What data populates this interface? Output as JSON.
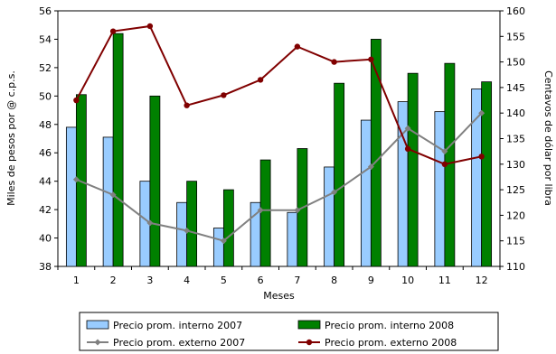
{
  "chart_data": {
    "type": "bar",
    "title": "",
    "xlabel": "Meses",
    "ylabel": "Miles de pesos por @ c.p.s.",
    "y2label": "Centavos de dólar por libra",
    "categories": [
      "1",
      "2",
      "3",
      "4",
      "5",
      "6",
      "7",
      "8",
      "9",
      "10",
      "11",
      "12"
    ],
    "ylim": [
      38,
      56
    ],
    "yticks": [
      38,
      40,
      42,
      44,
      46,
      48,
      50,
      52,
      54,
      56
    ],
    "y2lim": [
      110,
      160
    ],
    "y2ticks": [
      110,
      115,
      120,
      125,
      130,
      135,
      140,
      145,
      150,
      155,
      160
    ],
    "grid": false,
    "legend_position": "bottom",
    "series": [
      {
        "name": "Precio prom. interno 2007",
        "kind": "bar",
        "axis": "left",
        "color": "#99ccff",
        "values": [
          47.8,
          47.1,
          44.0,
          42.5,
          40.7,
          42.5,
          41.8,
          45.0,
          48.3,
          49.6,
          48.9,
          50.5
        ]
      },
      {
        "name": "Precio prom. interno 2008",
        "kind": "bar",
        "axis": "left",
        "color": "#008000",
        "values": [
          50.1,
          54.4,
          50.0,
          44.0,
          43.4,
          45.5,
          46.3,
          50.9,
          54.0,
          51.6,
          52.3,
          51.0
        ]
      },
      {
        "name": "Precio prom. externo 2007",
        "kind": "line",
        "axis": "right",
        "color": "#808080",
        "marker": "diamond",
        "values": [
          127,
          124,
          118.5,
          117,
          115,
          121,
          121,
          124.5,
          129.5,
          137,
          132.5,
          140
        ]
      },
      {
        "name": "Precio prom. externo 2008",
        "kind": "line",
        "axis": "right",
        "color": "#800000",
        "marker": "circle",
        "values": [
          142.5,
          156,
          157,
          141.5,
          143.5,
          146.5,
          153,
          150,
          150.5,
          133,
          130,
          131.5
        ]
      }
    ]
  }
}
